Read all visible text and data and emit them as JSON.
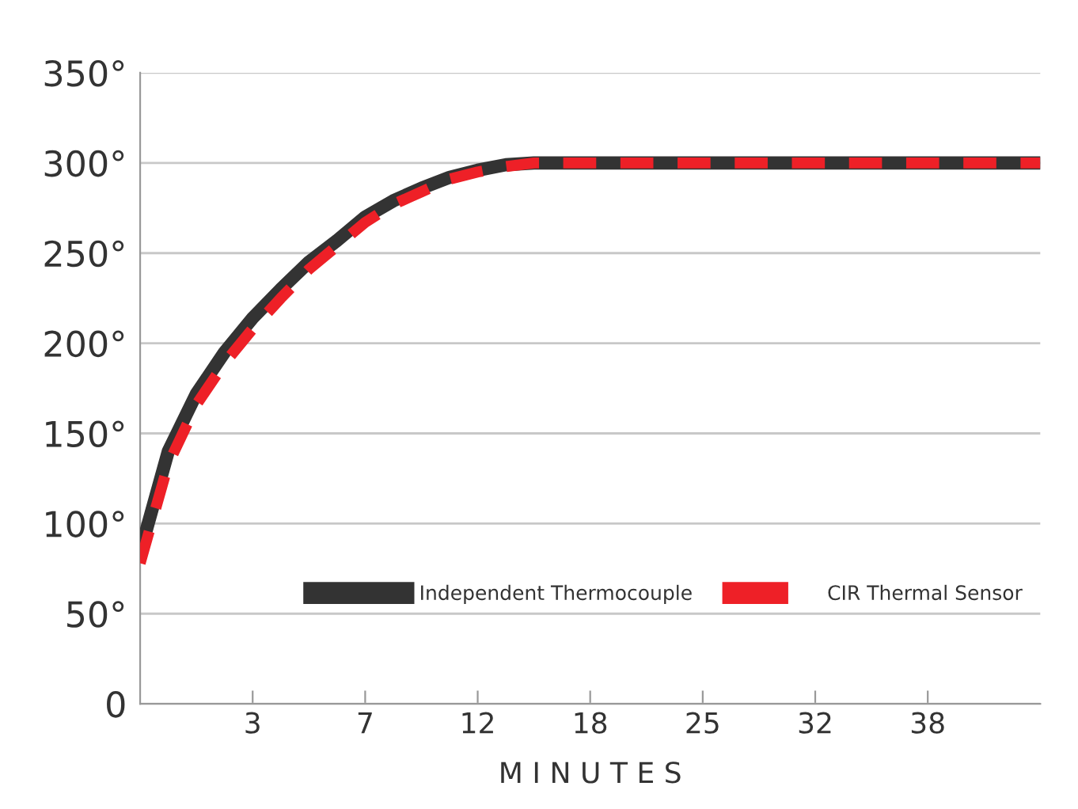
{
  "chart_data": {
    "type": "line",
    "xlabel": "M I N U T E S",
    "categories": [
      null,
      null,
      null,
      null,
      "3",
      null,
      null,
      null,
      "7",
      null,
      null,
      null,
      "12",
      null,
      null,
      null,
      "18",
      null,
      null,
      null,
      "25",
      null,
      null,
      null,
      "32",
      null,
      null,
      null,
      "38",
      null,
      null,
      null,
      null
    ],
    "ylim": [
      0,
      350
    ],
    "yticks": [
      0,
      {
        "value": 50,
        "label": "50°"
      },
      {
        "value": 100,
        "label": "100°"
      },
      {
        "value": 150,
        "label": "150°"
      },
      {
        "value": 200,
        "label": "200°"
      },
      {
        "value": 250,
        "label": "250°"
      },
      {
        "value": 300,
        "label": "300°"
      },
      {
        "value": 350,
        "label": "350°"
      }
    ],
    "grid": "y",
    "legend": "bottom right",
    "series": [
      {
        "name": "Independent Thermocouple",
        "color": "#333333",
        "line_style": "solid",
        "values": [
          84,
          140,
          172,
          195,
          214,
          230,
          245,
          257,
          270,
          279,
          286,
          292,
          296,
          299,
          300,
          300,
          300,
          300,
          300,
          300,
          300,
          300,
          300,
          300,
          300,
          300,
          300,
          300,
          300,
          300,
          300,
          300,
          300
        ]
      },
      {
        "name": "CIR Thermal Sensor",
        "color": "#ee2027",
        "line_style": "dashed",
        "values": [
          78,
          133,
          166,
          189,
          208,
          225,
          241,
          254,
          267,
          277,
          284,
          291,
          295,
          298,
          300,
          300,
          300,
          300,
          300,
          300,
          300,
          300,
          300,
          300,
          300,
          300,
          300,
          300,
          300,
          300,
          300,
          300,
          300
        ]
      }
    ]
  }
}
